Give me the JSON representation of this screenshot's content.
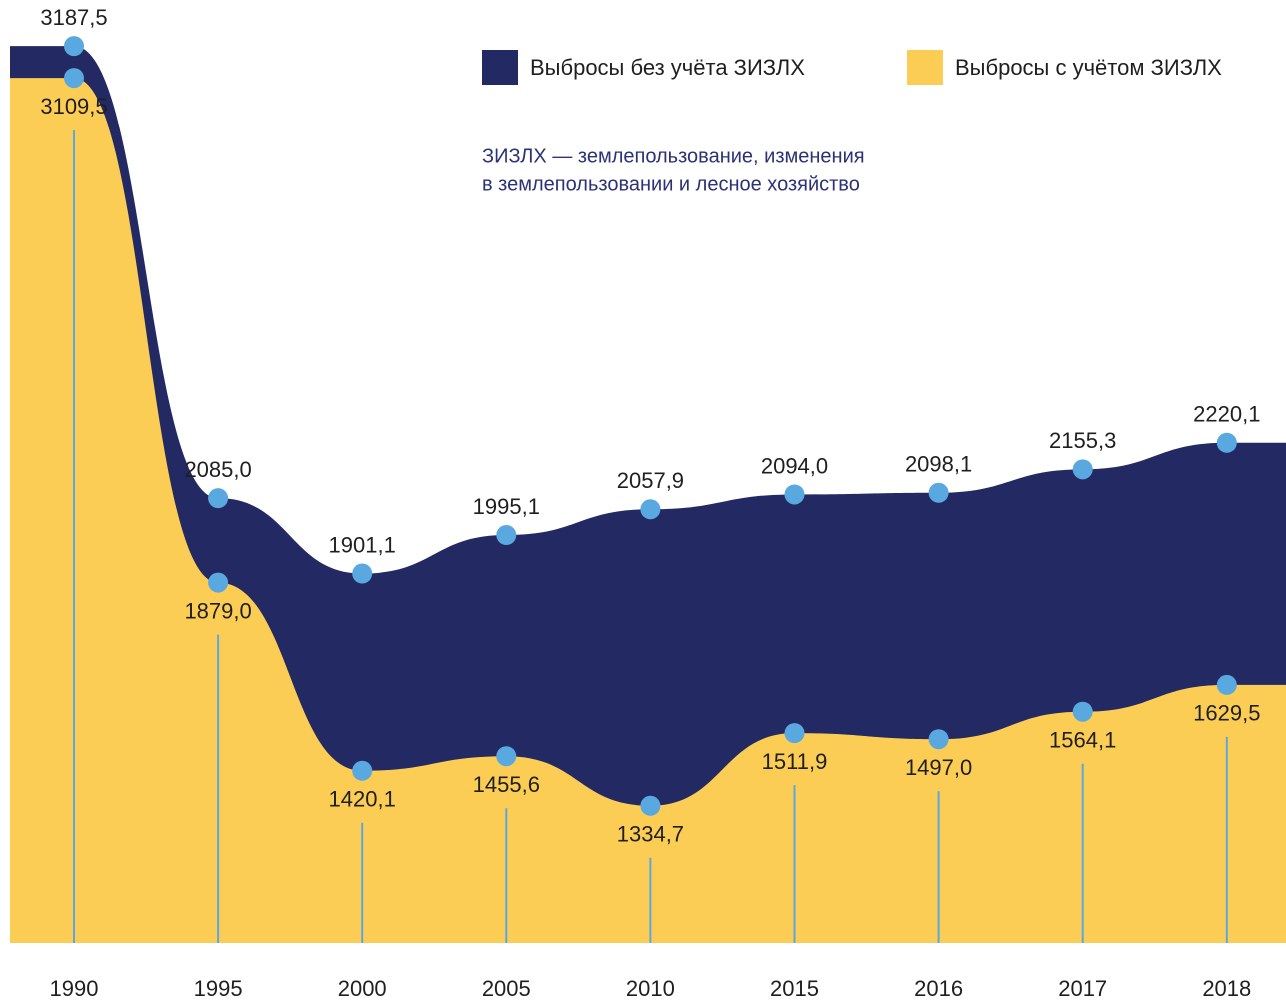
{
  "chart_data": {
    "type": "area",
    "categories": [
      "1990",
      "1995",
      "2000",
      "2005",
      "2010",
      "2015",
      "2016",
      "2017",
      "2018"
    ],
    "series": [
      {
        "name": "Выбросы без учёта ЗИЗЛХ",
        "color": "#232a63",
        "values": [
          3187.5,
          2085.0,
          1901.1,
          1995.1,
          2057.9,
          2094.0,
          2098.1,
          2155.3,
          2220.1
        ],
        "value_labels": [
          "3187,5",
          "2085,0",
          "1901,1",
          "1995,1",
          "2057,9",
          "2094,0",
          "2098,1",
          "2155,3",
          "2220,1"
        ]
      },
      {
        "name": "Выбросы с учётом ЗИЗЛХ",
        "color": "#fccd55",
        "values": [
          3109.5,
          1879.0,
          1420.1,
          1455.6,
          1334.7,
          1511.9,
          1497.0,
          1564.1,
          1629.5
        ],
        "value_labels": [
          "3109,5",
          "1879,0",
          "1420,1",
          "1455,6",
          "1334,7",
          "1511,9",
          "1497,0",
          "1564,1",
          "1629,5"
        ]
      }
    ],
    "note": [
      "ЗИЗЛХ — землепользование, изменения",
      "в землепользовании и лесное хозяйство"
    ],
    "marker_color": "#5aa8e0",
    "ylim": [
      1000,
      3300
    ]
  }
}
